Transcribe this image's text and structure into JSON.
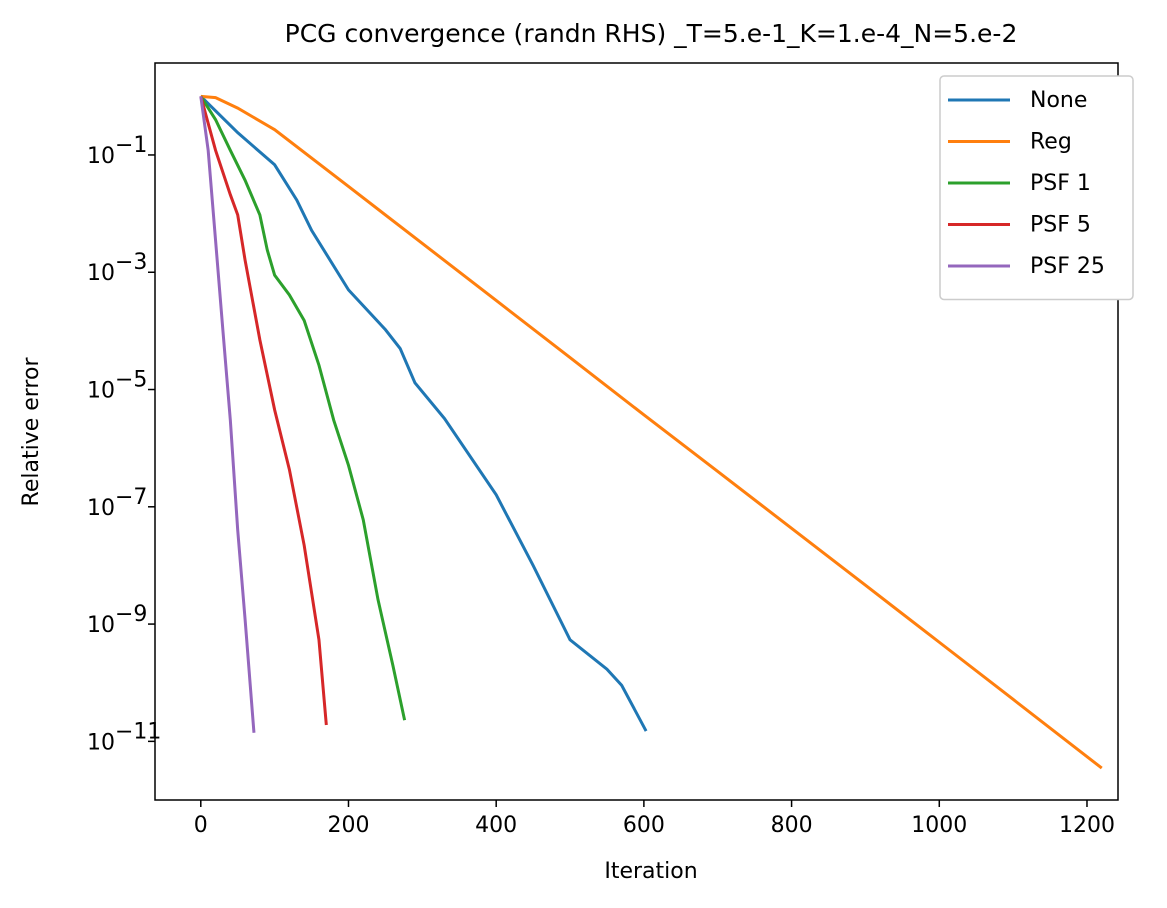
{
  "chart_data": {
    "type": "line",
    "title": "PCG convergence (randn RHS) _T=5.e-1_K=1.e-4_N=5.e-2",
    "xlabel": "Iteration",
    "ylabel": "Relative error",
    "xlim": [
      -62,
      1242
    ],
    "ylim": [
      1e-12,
      3.7
    ],
    "yscale": "log",
    "xticks": [
      0,
      200,
      400,
      600,
      800,
      1000,
      1200
    ],
    "yticks": [
      {
        "value": 0.1,
        "label": "10",
        "exponent": "−1"
      },
      {
        "value": 0.001,
        "label": "10",
        "exponent": "−3"
      },
      {
        "value": 1e-05,
        "label": "10",
        "exponent": "−5"
      },
      {
        "value": 1e-07,
        "label": "10",
        "exponent": "−7"
      },
      {
        "value": 1e-09,
        "label": "10",
        "exponent": "−9"
      },
      {
        "value": 1e-11,
        "label": "10",
        "exponent": "−11"
      }
    ],
    "legend": "upper right",
    "series": [
      {
        "name": "None",
        "color": "#1f77b4",
        "x": [
          0,
          50,
          100,
          130,
          150,
          200,
          250,
          270,
          290,
          330,
          400,
          450,
          500,
          550,
          570,
          603
        ],
        "values": [
          1,
          0.24,
          0.068,
          0.017,
          0.0052,
          0.0005,
          0.000105,
          5e-05,
          1.3e-05,
          3.2e-06,
          1.6e-07,
          1e-08,
          5.4e-10,
          1.7e-10,
          9e-11,
          1.5e-11
        ]
      },
      {
        "name": "Reg",
        "color": "#ff7f0e",
        "x": [
          0,
          20,
          50,
          100,
          200,
          300,
          400,
          500,
          600,
          700,
          800,
          900,
          1000,
          1100,
          1220
        ],
        "values": [
          1,
          0.95,
          0.63,
          0.27,
          0.029,
          0.0031,
          0.00033,
          3.5e-05,
          3.7e-06,
          4e-07,
          4.3e-08,
          4.6e-09,
          4.9e-10,
          5.2e-11,
          3.5e-12
        ]
      },
      {
        "name": "PSF 1",
        "color": "#2ca02c",
        "x": [
          0,
          20,
          40,
          60,
          80,
          90,
          100,
          120,
          140,
          160,
          180,
          200,
          220,
          240,
          260,
          276
        ],
        "values": [
          1,
          0.4,
          0.12,
          0.037,
          0.0095,
          0.0024,
          0.00089,
          0.00041,
          0.00015,
          2.6e-05,
          3e-06,
          5.1e-07,
          6e-08,
          2.6e-09,
          2e-10,
          2.3e-11
        ]
      },
      {
        "name": "PSF 5",
        "color": "#d62728",
        "x": [
          0,
          20,
          40,
          50,
          60,
          80,
          100,
          120,
          140,
          160,
          170
        ],
        "values": [
          1,
          0.12,
          0.021,
          0.0095,
          0.0016,
          7e-05,
          4.5e-06,
          4.3e-07,
          2.2e-08,
          5.4e-10,
          1.9e-11
        ]
      },
      {
        "name": "PSF 25",
        "color": "#9467bd",
        "x": [
          0,
          10,
          20,
          30,
          40,
          50,
          60,
          72
        ],
        "values": [
          1,
          0.12,
          0.0035,
          0.0001,
          3e-06,
          4e-08,
          1.2e-09,
          1.4e-11
        ]
      }
    ]
  }
}
